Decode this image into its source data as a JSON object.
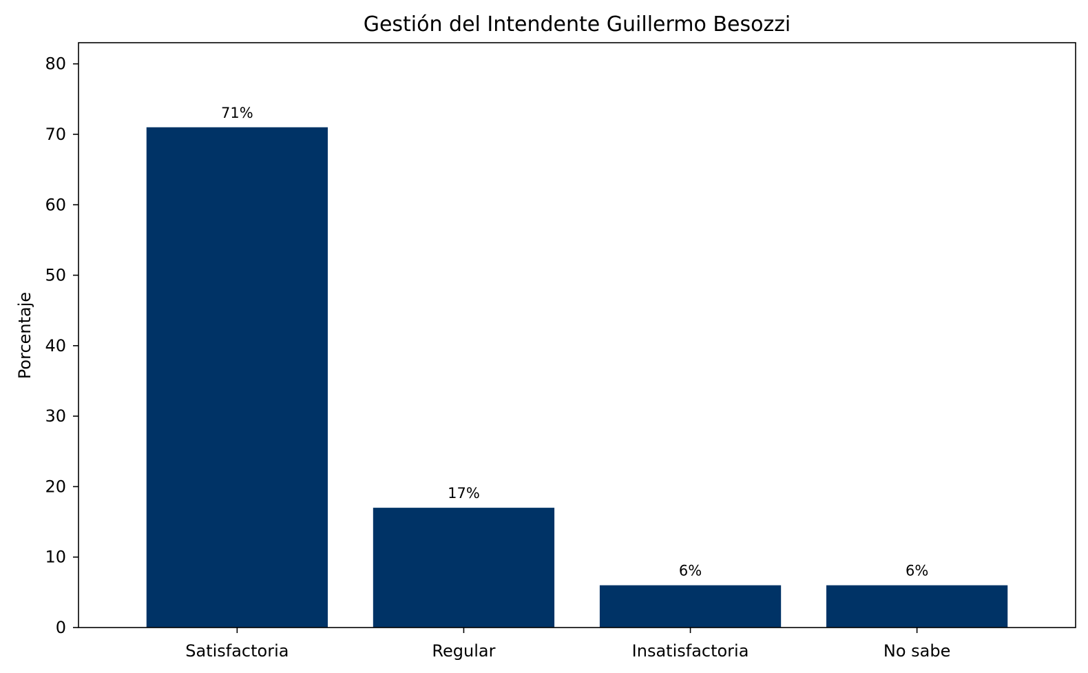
{
  "chart_data": {
    "type": "bar",
    "title": "Gestión del Intendente Guillermo Besozzi",
    "xlabel": "",
    "ylabel": "Porcentaje",
    "categories": [
      "Satisfactoria",
      "Regular",
      "Insatisfactoria",
      "No sabe"
    ],
    "values": [
      71,
      17,
      6,
      6
    ],
    "data_labels": [
      "71%",
      "17%",
      "6%",
      "6%"
    ],
    "ylim": [
      0,
      83
    ],
    "yticks": [
      0,
      10,
      20,
      30,
      40,
      50,
      60,
      70,
      80
    ],
    "grid": false,
    "legend": "none",
    "bar_color": "#003366"
  }
}
